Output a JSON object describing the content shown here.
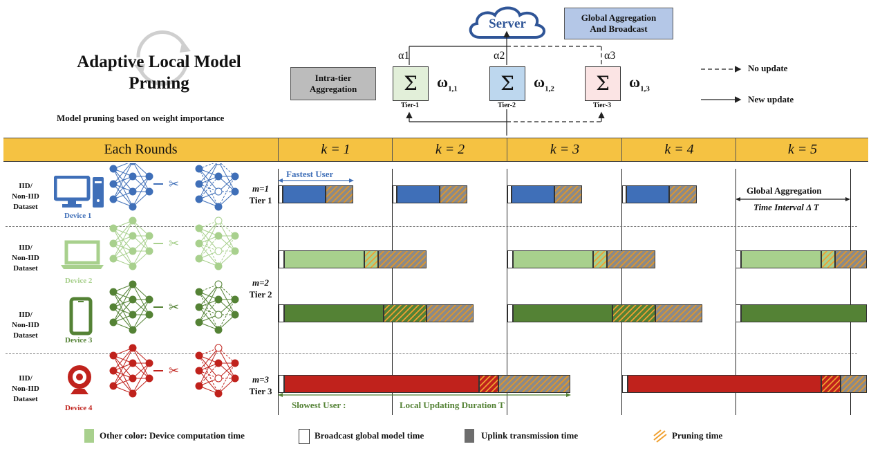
{
  "title": "Adaptive Local Model Pruning",
  "subtitle": "Model pruning  based on weight importance",
  "server": {
    "label": "Server"
  },
  "global_box": {
    "line1": "Global Aggregation",
    "line2": "And Broadcast"
  },
  "intra_box": {
    "line1": "Intra-tier",
    "line2": "Aggregation"
  },
  "tiers_top": [
    {
      "alpha": "α1",
      "sigma": "Σ",
      "label": "Tier-1",
      "omega": "ω",
      "sub": "1,1",
      "color": "#e2efd9"
    },
    {
      "alpha": "α2",
      "sigma": "Σ",
      "label": "Tier-2",
      "omega": "ω",
      "sub": "1,2",
      "color": "#bdd7ee"
    },
    {
      "alpha": "α3",
      "sigma": "Σ",
      "label": "Tier-3",
      "omega": "ω",
      "sub": "1,3",
      "color": "#fbe4e4"
    }
  ],
  "side_legend": {
    "no_update": "No update",
    "new_update": "New update"
  },
  "header": {
    "rounds": "Each Rounds",
    "k": [
      "k = 1",
      "k = 2",
      "k = 3",
      "k = 4",
      "k = 5"
    ]
  },
  "dataset_label": {
    "l1": "IID/",
    "l2": "Non-IID",
    "l3": "Dataset"
  },
  "devices": [
    {
      "name": "Device 1",
      "color": "#3f6fb8",
      "icon": "desktop-icon"
    },
    {
      "name": "Device 2",
      "color": "#a8d08d",
      "icon": "laptop-icon"
    },
    {
      "name": "Device 3",
      "color": "#548235",
      "icon": "phone-icon"
    },
    {
      "name": "Device 4",
      "color": "#c0221c",
      "icon": "webcam-icon"
    }
  ],
  "tier_labels": [
    {
      "m": "m=1",
      "tier": "Tier 1"
    },
    {
      "m": "m=2",
      "tier": "Tier 2"
    },
    {
      "m": "m=3",
      "tier": "Tier 3"
    }
  ],
  "annotations": {
    "fastest": "Fastest User",
    "slowest": "Slowest User :",
    "duration": "Local Updating  Duration  T",
    "global_interval_1": "Global Aggregation",
    "global_interval_2": "Time Interval Δ T"
  },
  "legend": {
    "computation": "Other color: Device computation  time",
    "broadcast": "Broadcast global model time",
    "uplink": "Uplink transmission time",
    "pruning": "Pruning time"
  }
}
